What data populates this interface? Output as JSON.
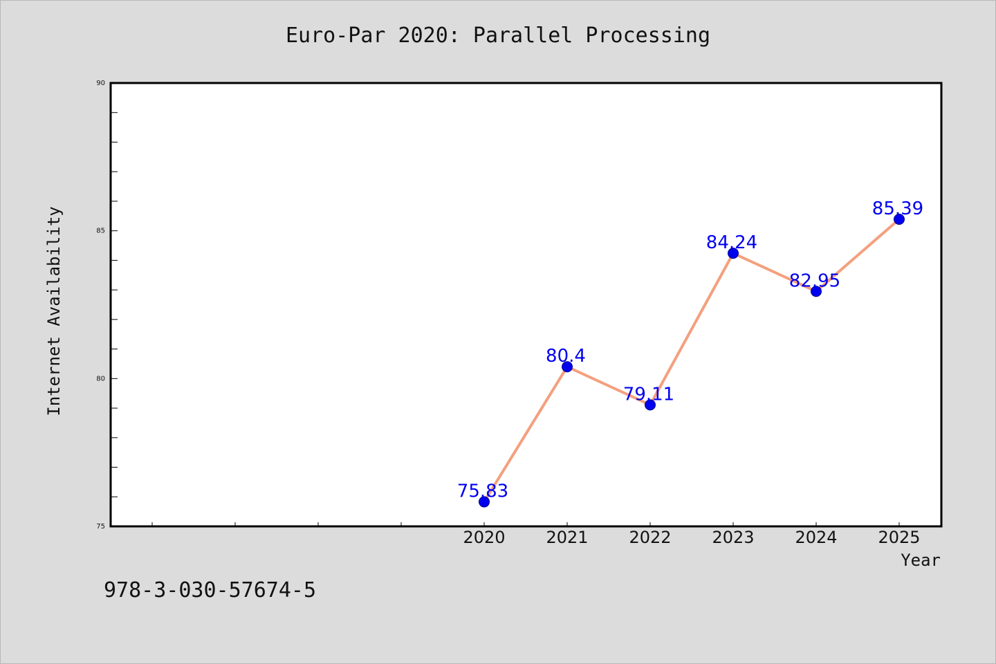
{
  "chart_data": {
    "type": "line",
    "title": "Euro-Par 2020: Parallel Processing",
    "xlabel": "Year",
    "ylabel": "Internet Availability",
    "categories": [
      "2020",
      "2021",
      "2022",
      "2023",
      "2024",
      "2025"
    ],
    "series": [
      {
        "values": [
          75.83,
          80.4,
          79.11,
          84.24,
          82.95,
          85.39
        ],
        "data_labels": [
          "75.83",
          "80.4",
          "79.11",
          "84.24",
          "82.95",
          "85.39"
        ]
      }
    ],
    "ylim": [
      75,
      90
    ],
    "yticks": [
      "75",
      "80",
      "85",
      "90"
    ],
    "grid": false,
    "legend": "none",
    "colors": {
      "line": "#f4a07e",
      "marker": "#0000ee",
      "label": "#0000ee",
      "plot_background": "#ffffff",
      "page_background": "#dcdcdc"
    }
  },
  "footer": {
    "isbn": "978-3-030-57674-5"
  }
}
